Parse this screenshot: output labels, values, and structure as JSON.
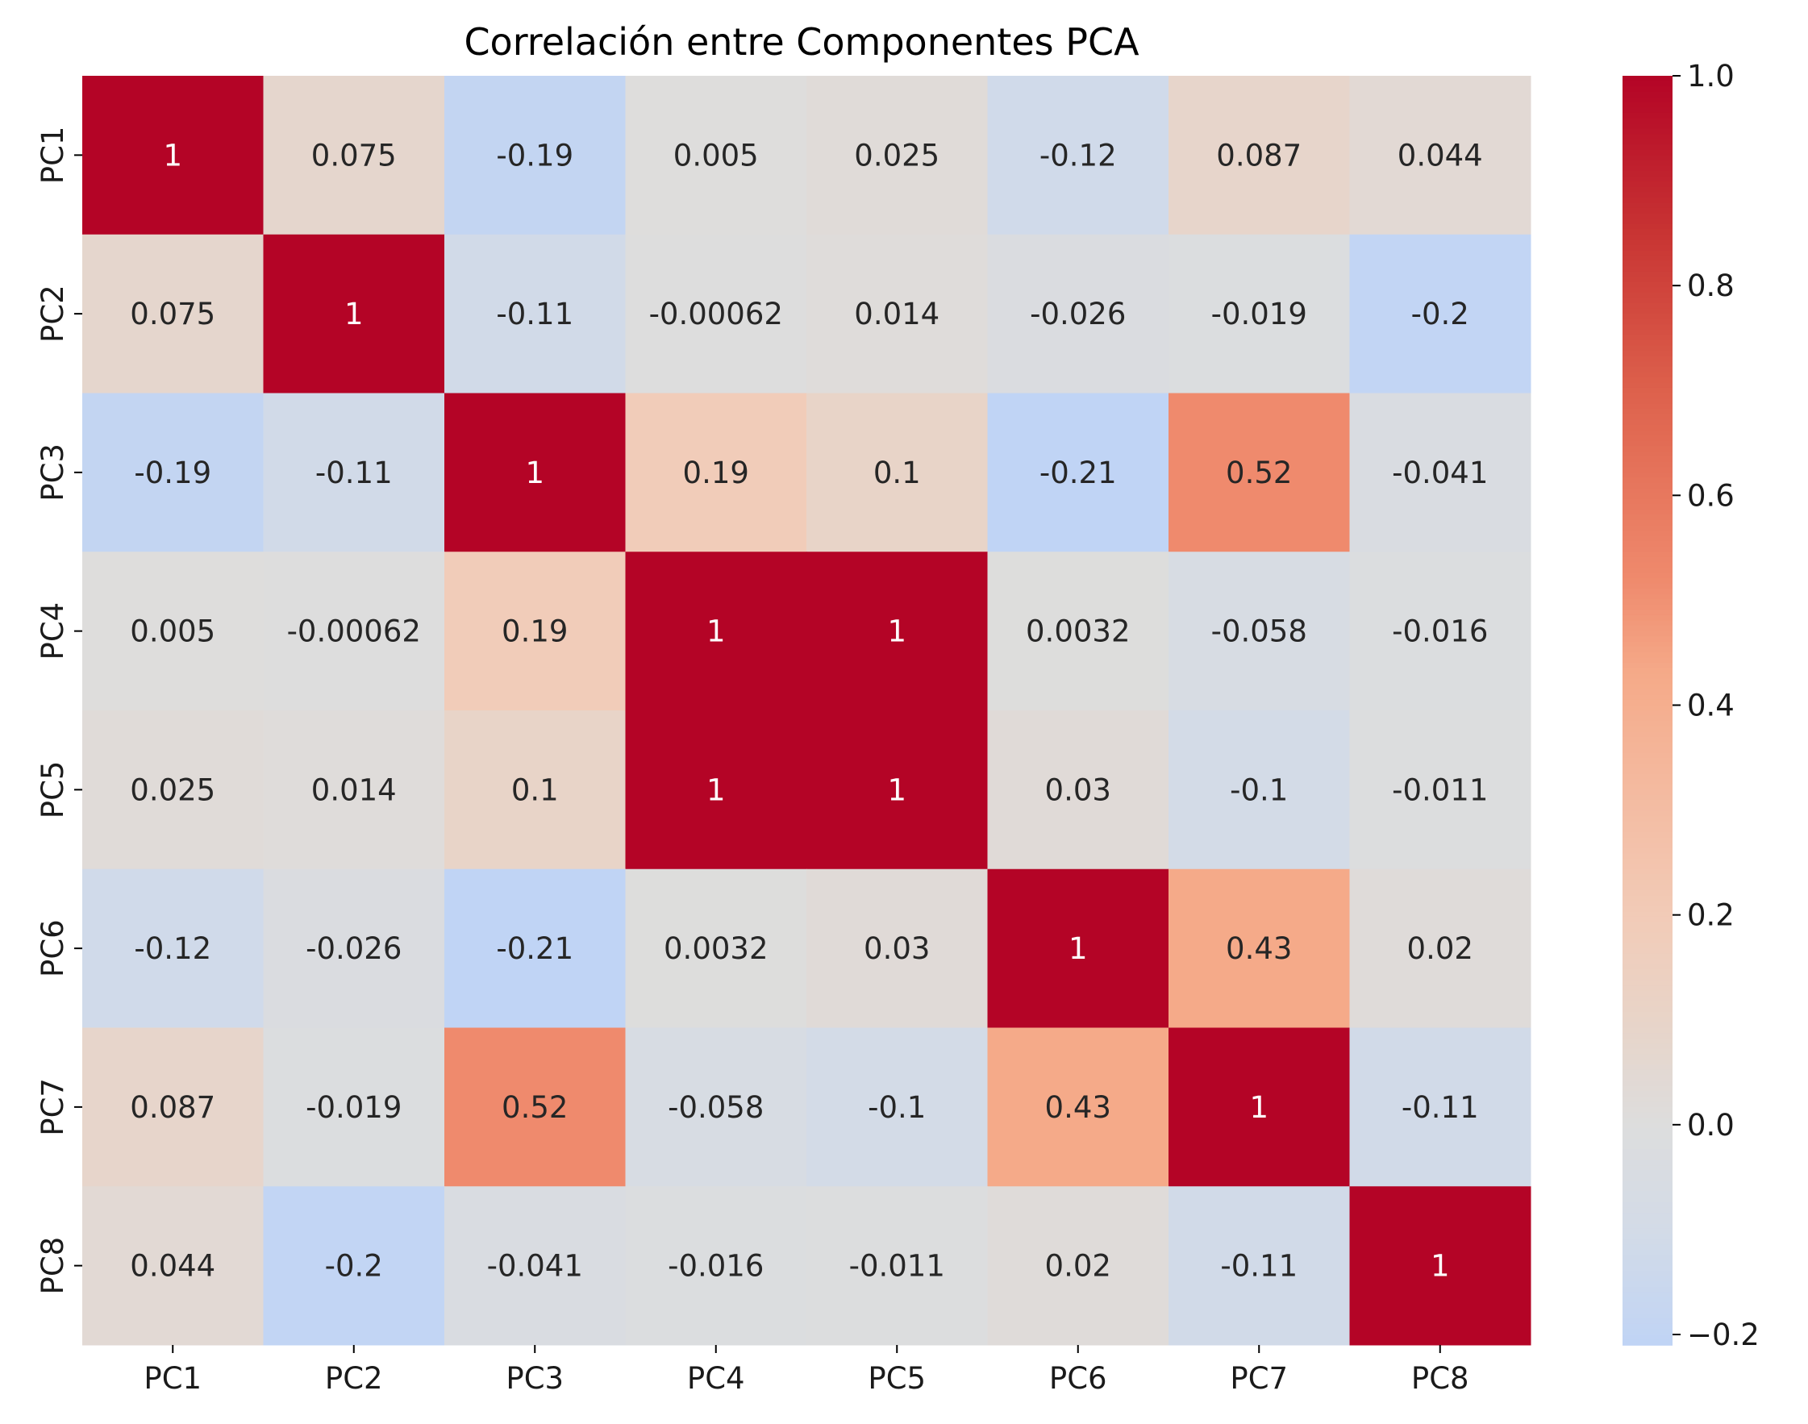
{
  "chart_data": {
    "type": "heatmap",
    "title": "Correlación entre Componentes PCA",
    "xlabel": "",
    "ylabel": "",
    "x_labels": [
      "PC1",
      "PC2",
      "PC3",
      "PC4",
      "PC5",
      "PC6",
      "PC7",
      "PC8"
    ],
    "y_labels": [
      "PC1",
      "PC2",
      "PC3",
      "PC4",
      "PC5",
      "PC6",
      "PC7",
      "PC8"
    ],
    "values": [
      [
        1,
        0.075,
        -0.19,
        0.005,
        0.025,
        -0.12,
        0.087,
        0.044
      ],
      [
        0.075,
        1,
        -0.11,
        -0.00062,
        0.014,
        -0.026,
        -0.019,
        -0.2
      ],
      [
        -0.19,
        -0.11,
        1,
        0.19,
        0.1,
        -0.21,
        0.52,
        -0.041
      ],
      [
        0.005,
        -0.00062,
        0.19,
        1,
        1,
        0.0032,
        -0.058,
        -0.016
      ],
      [
        0.025,
        0.014,
        0.1,
        1,
        1,
        0.03,
        -0.1,
        -0.011
      ],
      [
        -0.12,
        -0.026,
        -0.21,
        0.0032,
        0.03,
        1,
        0.43,
        0.02
      ],
      [
        0.087,
        -0.019,
        0.52,
        -0.058,
        -0.1,
        0.43,
        1,
        -0.11
      ],
      [
        0.044,
        -0.2,
        -0.041,
        -0.016,
        -0.011,
        0.02,
        -0.11,
        1
      ]
    ],
    "annotations": [
      [
        "1",
        "0.075",
        "-0.19",
        "0.005",
        "0.025",
        "-0.12",
        "0.087",
        "0.044"
      ],
      [
        "0.075",
        "1",
        "-0.11",
        "-0.00062",
        "0.014",
        "-0.026",
        "-0.019",
        "-0.2"
      ],
      [
        "-0.19",
        "-0.11",
        "1",
        "0.19",
        "0.1",
        "-0.21",
        "0.52",
        "-0.041"
      ],
      [
        "0.005",
        "-0.00062",
        "0.19",
        "1",
        "1",
        "0.0032",
        "-0.058",
        "-0.016"
      ],
      [
        "0.025",
        "0.014",
        "0.1",
        "1",
        "1",
        "0.03",
        "-0.1",
        "-0.011"
      ],
      [
        "-0.12",
        "-0.026",
        "-0.21",
        "0.0032",
        "0.03",
        "1",
        "0.43",
        "0.02"
      ],
      [
        "0.087",
        "-0.019",
        "0.52",
        "-0.058",
        "-0.1",
        "0.43",
        "1",
        "-0.11"
      ],
      [
        "0.044",
        "-0.2",
        "-0.041",
        "-0.016",
        "-0.011",
        "0.02",
        "-0.11",
        "1"
      ]
    ],
    "colormap": "coolwarm",
    "center": 0,
    "colorbar": {
      "range": [
        -0.21,
        1.0
      ],
      "ticks": [
        1.0,
        0.8,
        0.6,
        0.4,
        0.2,
        0.0,
        -0.2
      ],
      "tick_labels": [
        "1.0",
        "0.8",
        "0.6",
        "0.4",
        "0.2",
        "0.0",
        "−0.2"
      ]
    },
    "colors": {
      "low": "#c2d4f2",
      "center": "#dddddd",
      "high": "#b40426",
      "text_dark": "#262626",
      "text_light": "#ffffff"
    }
  }
}
